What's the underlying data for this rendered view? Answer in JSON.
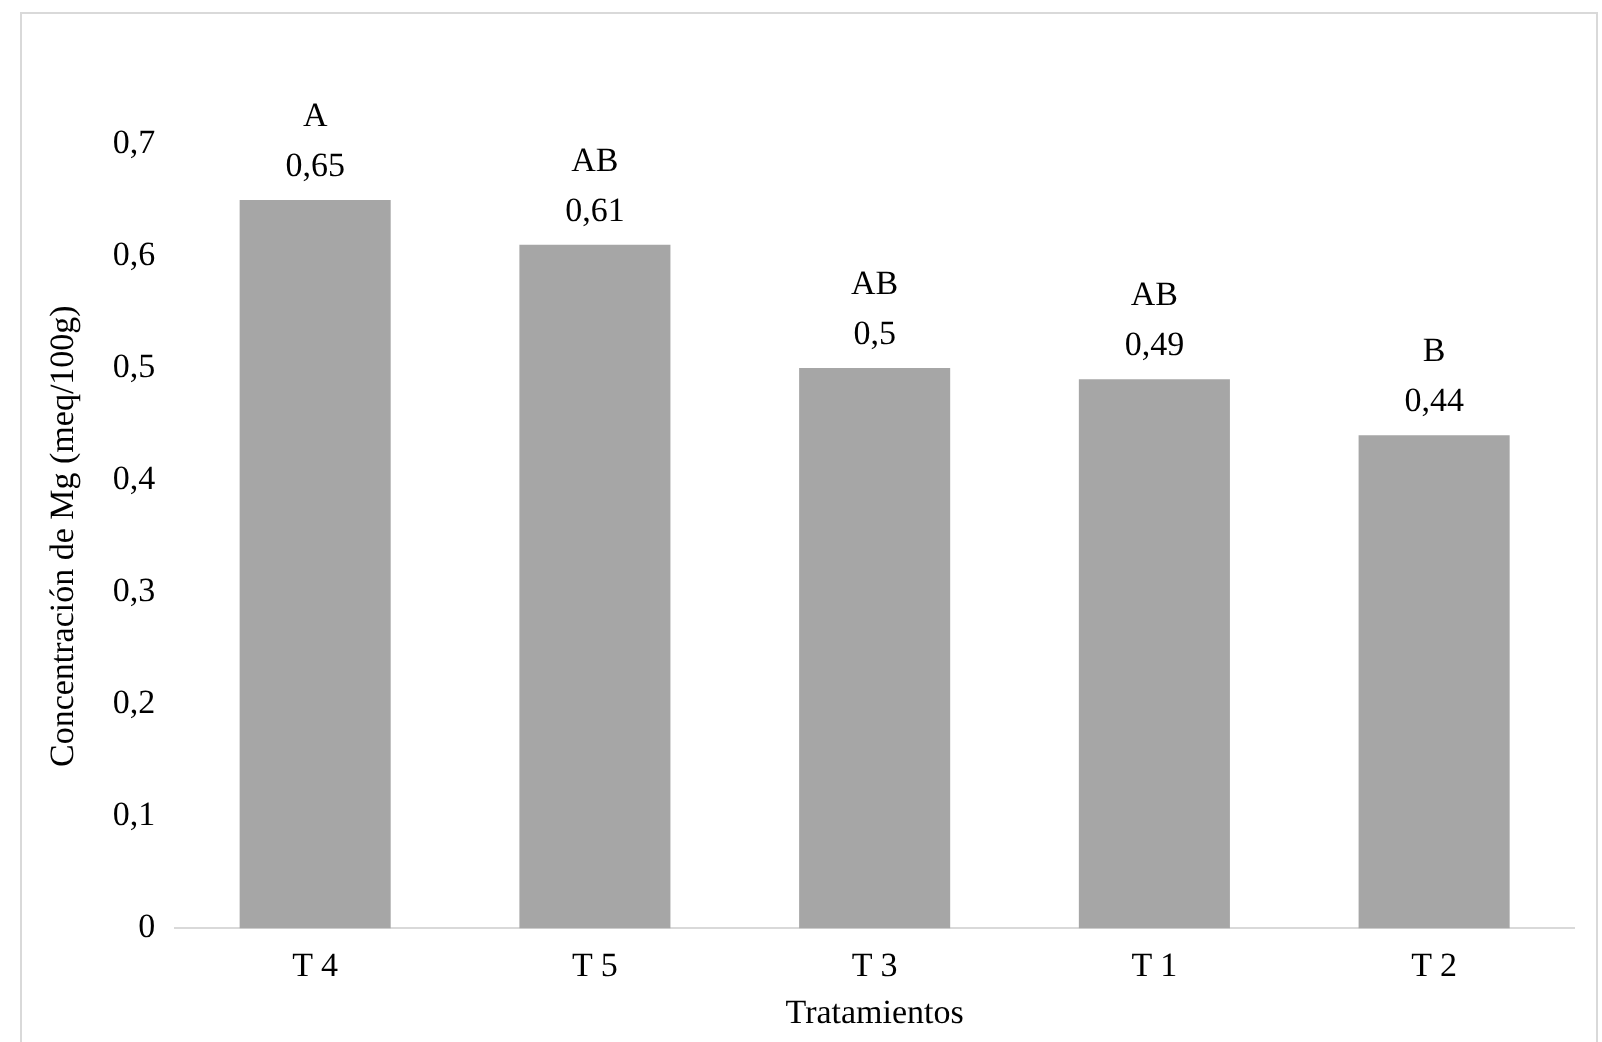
{
  "chart_data": {
    "type": "bar",
    "xlabel": "Tratamientos",
    "ylabel": "Concentración de Mg (meq/100g)",
    "categories": [
      "T 4",
      "T 5",
      "T 3",
      "T 1",
      "T 2"
    ],
    "values": [
      0.65,
      0.61,
      0.5,
      0.49,
      0.44
    ],
    "value_labels": [
      "0,65",
      "0,61",
      "0,5",
      "0,49",
      "0,44"
    ],
    "color": "#a6a6a6",
    "ylim": [
      0,
      0.7
    ],
    "yticks": [
      {
        "value": 0,
        "label": "0"
      },
      {
        "value": 0.1,
        "label": "0,1"
      },
      {
        "value": 0.2,
        "label": "0,2"
      },
      {
        "value": 0.3,
        "label": "0,3"
      },
      {
        "value": 0.4,
        "label": "0,4"
      },
      {
        "value": 0.5,
        "label": "0,5"
      },
      {
        "value": 0.6,
        "label": "0,6"
      },
      {
        "value": 0.7,
        "label": "0,7"
      }
    ],
    "annotations": [
      {
        "text": "A",
        "x": "T 4",
        "y": 0.65
      },
      {
        "text": "AB",
        "x": "T 5",
        "y": 0.61
      },
      {
        "text": "AB",
        "x": "T 3",
        "y": 0.5
      },
      {
        "text": "AB",
        "x": "T 1",
        "y": 0.49
      },
      {
        "text": "B",
        "x": "T 2",
        "y": 0.44
      }
    ],
    "grid": false,
    "legend": false
  }
}
